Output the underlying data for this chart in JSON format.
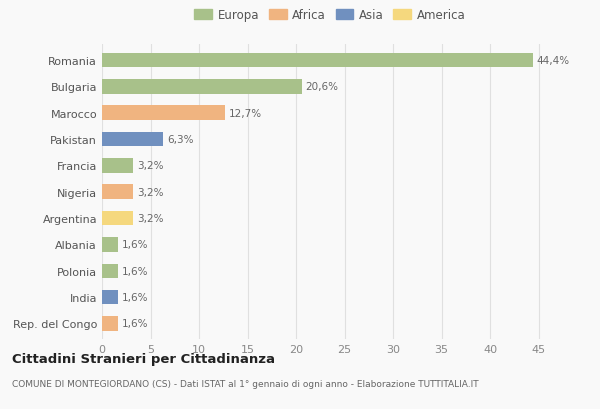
{
  "categories": [
    "Romania",
    "Bulgaria",
    "Marocco",
    "Pakistan",
    "Francia",
    "Nigeria",
    "Argentina",
    "Albania",
    "Polonia",
    "India",
    "Rep. del Congo"
  ],
  "values": [
    44.4,
    20.6,
    12.7,
    6.3,
    3.2,
    3.2,
    3.2,
    1.6,
    1.6,
    1.6,
    1.6
  ],
  "labels": [
    "44,4%",
    "20,6%",
    "12,7%",
    "6,3%",
    "3,2%",
    "3,2%",
    "3,2%",
    "1,6%",
    "1,6%",
    "1,6%",
    "1,6%"
  ],
  "colors": [
    "#a8c18a",
    "#a8c18a",
    "#f0b480",
    "#7090bf",
    "#a8c18a",
    "#f0b480",
    "#f5d87e",
    "#a8c18a",
    "#a8c18a",
    "#7090bf",
    "#f0b480"
  ],
  "legend_labels": [
    "Europa",
    "Africa",
    "Asia",
    "America"
  ],
  "legend_colors": [
    "#a8c18a",
    "#f0b480",
    "#7090bf",
    "#f5d87e"
  ],
  "xlim": [
    0,
    47
  ],
  "xticks": [
    0,
    5,
    10,
    15,
    20,
    25,
    30,
    35,
    40,
    45
  ],
  "title": "Cittadini Stranieri per Cittadinanza",
  "subtitle": "COMUNE DI MONTEGIORDANO (CS) - Dati ISTAT al 1° gennaio di ogni anno - Elaborazione TUTTITALIA.IT",
  "background_color": "#f9f9f9",
  "grid_color": "#e0e0e0",
  "bar_height": 0.55
}
